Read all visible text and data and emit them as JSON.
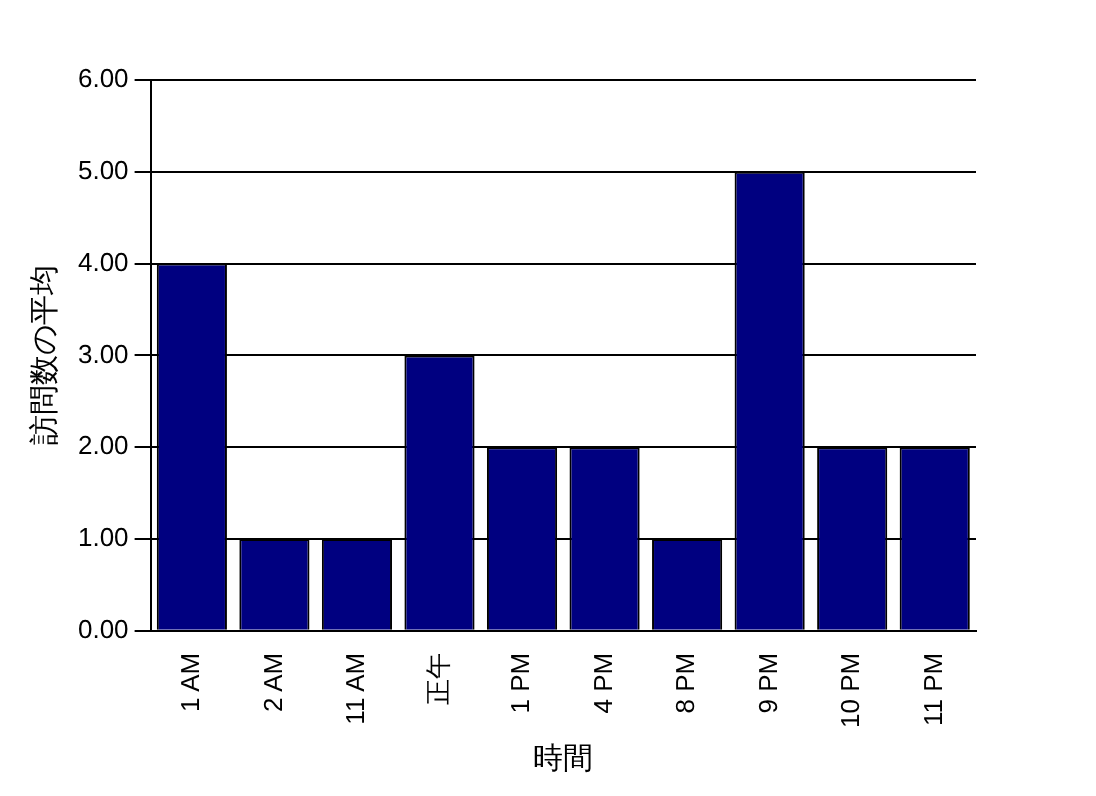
{
  "chart_data": {
    "type": "bar",
    "xlabel": "時間",
    "ylabel": "訪問数の平均",
    "categories": [
      "1 AM",
      "2 AM",
      "11 AM",
      "正午",
      "1 PM",
      "4 PM",
      "8 PM",
      "9 PM",
      "10 PM",
      "11 PM"
    ],
    "values": [
      4,
      1,
      1,
      3,
      2,
      2,
      1,
      5,
      2,
      2
    ],
    "color": "#000080",
    "ylim": [
      0,
      6
    ],
    "yticks": [
      {
        "value": 0,
        "label": "0.00"
      },
      {
        "value": 1,
        "label": "1.00"
      },
      {
        "value": 2,
        "label": "2.00"
      },
      {
        "value": 3,
        "label": "3.00"
      },
      {
        "value": 4,
        "label": "4.00"
      },
      {
        "value": 5,
        "label": "5.00"
      },
      {
        "value": 6,
        "label": "6.00"
      }
    ],
    "grid": "y",
    "legend": false
  }
}
